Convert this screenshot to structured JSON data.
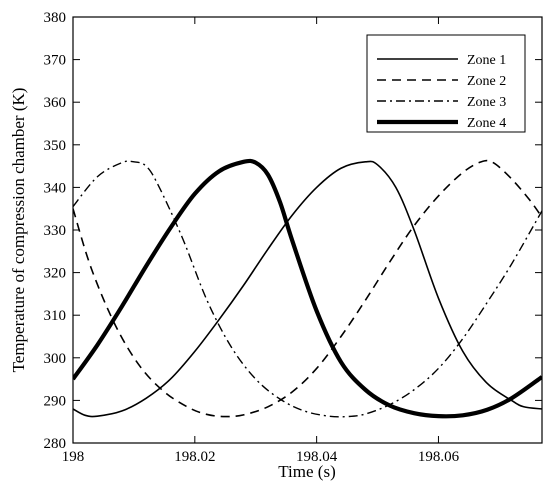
{
  "chart_data": {
    "type": "line",
    "xlabel": "Time (s)",
    "ylabel": "Temperature of compression chamber (K)",
    "xlim": [
      198,
      198.077
    ],
    "ylim": [
      280,
      380
    ],
    "x_ticks": [
      198,
      198.02,
      198.04,
      198.06
    ],
    "x_tick_labels": [
      "198",
      "198.02",
      "198.04",
      "198.06"
    ],
    "y_ticks": [
      280,
      290,
      300,
      310,
      320,
      330,
      340,
      350,
      360,
      370,
      380
    ],
    "y_tick_labels": [
      "280",
      "290",
      "300",
      "310",
      "320",
      "330",
      "340",
      "350",
      "360",
      "370",
      "380"
    ],
    "grid": false,
    "legend_position": "top-right",
    "period": 0.0385,
    "series": [
      {
        "name": "Zone 1",
        "style": "solid",
        "x": [
          198.0,
          198.002,
          198.004,
          198.008,
          198.012,
          198.016,
          198.02,
          198.024,
          198.028,
          198.032,
          198.036,
          198.04,
          198.044,
          198.048,
          198.05,
          198.053,
          198.056,
          198.06,
          198.064,
          198.068,
          198.072,
          198.074,
          198.077
        ],
        "values": [
          288.0,
          286.5,
          286.3,
          287.5,
          290.5,
          295.0,
          301.5,
          309.0,
          317.0,
          325.5,
          333.5,
          340.0,
          344.5,
          346.0,
          345.3,
          340.0,
          330.0,
          314.0,
          301.5,
          294.0,
          290.0,
          288.5,
          288.0
        ]
      },
      {
        "name": "Zone 2",
        "style": "dashed",
        "x": [
          198.0,
          198.003,
          198.007,
          198.011,
          198.015,
          198.019,
          198.022,
          198.025,
          198.028,
          198.032,
          198.036,
          198.04,
          198.044,
          198.048,
          198.052,
          198.056,
          198.06,
          198.064,
          198.067,
          198.069,
          198.072,
          198.075,
          198.077
        ],
        "values": [
          335.0,
          321.0,
          307.5,
          298.0,
          292.0,
          288.3,
          286.7,
          286.2,
          286.6,
          288.5,
          292.0,
          297.5,
          305.0,
          313.5,
          322.5,
          331.0,
          338.0,
          343.5,
          346.0,
          345.8,
          342.0,
          337.0,
          333.0
        ]
      },
      {
        "name": "Zone 3",
        "style": "dashdot",
        "x": [
          198.0,
          198.004,
          198.008,
          198.01,
          198.012,
          198.014,
          198.018,
          198.022,
          198.026,
          198.03,
          198.034,
          198.038,
          198.042,
          198.045,
          198.048,
          198.052,
          198.056,
          198.06,
          198.064,
          198.068,
          198.072,
          198.077
        ],
        "values": [
          335.5,
          342.5,
          345.8,
          346.0,
          345.0,
          340.5,
          328.0,
          313.5,
          302.5,
          295.0,
          290.3,
          287.5,
          286.3,
          286.2,
          286.8,
          289.0,
          292.5,
          297.5,
          304.5,
          313.0,
          322.0,
          334.5
        ]
      },
      {
        "name": "Zone 4",
        "style": "thick",
        "x": [
          198.0,
          198.004,
          198.008,
          198.012,
          198.016,
          198.02,
          198.024,
          198.028,
          198.03,
          198.032,
          198.034,
          198.036,
          198.04,
          198.044,
          198.048,
          198.052,
          198.056,
          198.06,
          198.064,
          198.068,
          198.072,
          198.077
        ],
        "values": [
          295.0,
          303.0,
          312.0,
          321.5,
          330.5,
          338.5,
          343.8,
          346.0,
          345.8,
          343.0,
          336.5,
          327.5,
          311.0,
          299.0,
          292.5,
          288.8,
          287.0,
          286.3,
          286.5,
          287.8,
          290.5,
          295.5
        ]
      }
    ]
  }
}
